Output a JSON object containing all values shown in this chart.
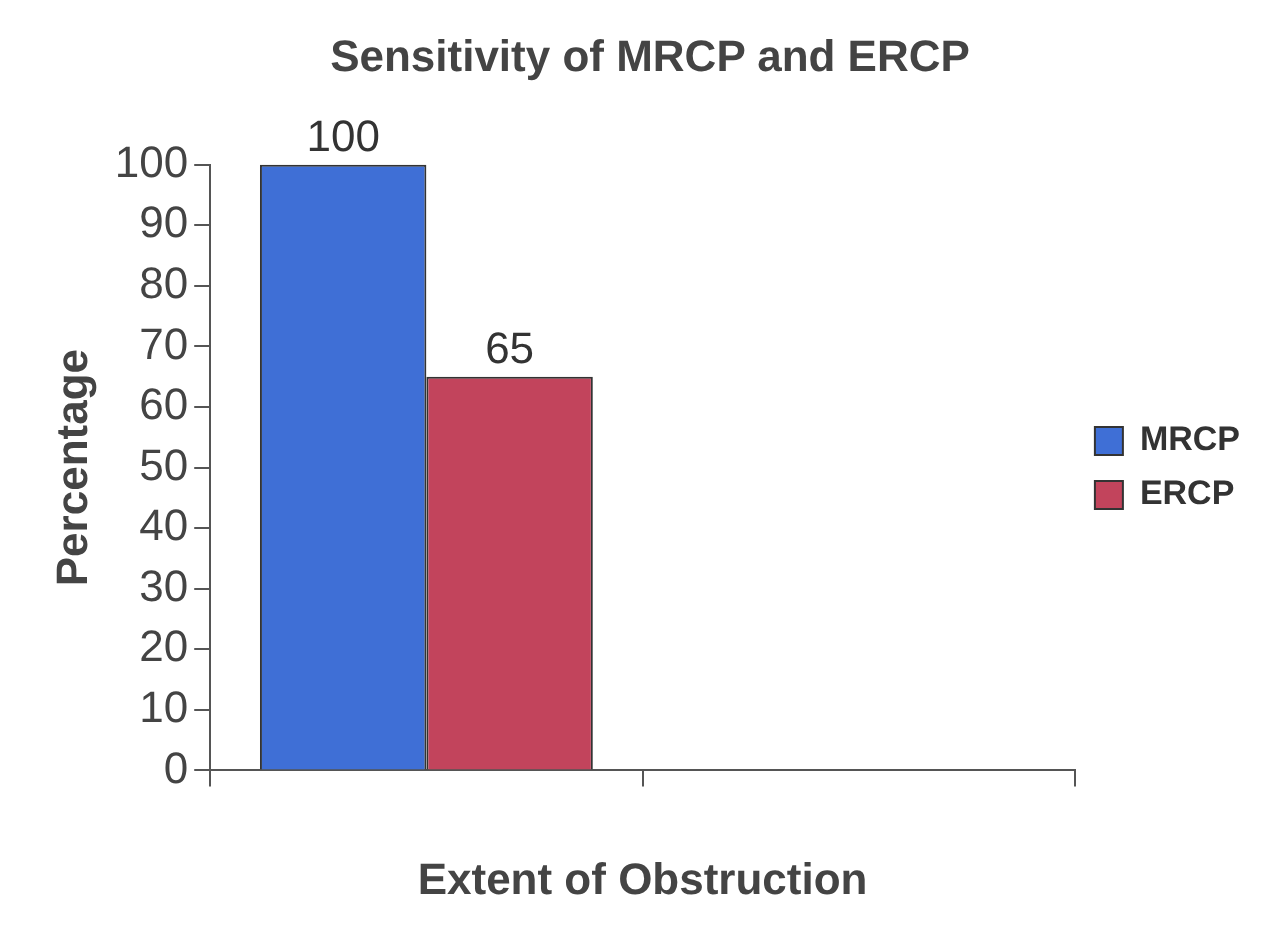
{
  "chart_data": {
    "type": "bar",
    "title": "Sensitivity of MRCP and ERCP",
    "xlabel": "Extent of Obstruction",
    "ylabel": "Percentage",
    "categories": [
      null,
      null
    ],
    "series": [
      {
        "name": "MRCP",
        "color": "#3f6fd6",
        "values": [
          100,
          null
        ]
      },
      {
        "name": "ERCP",
        "color": "#c2445c",
        "values": [
          65,
          null
        ]
      }
    ],
    "ylim": [
      0,
      100
    ],
    "yticks": [
      0,
      10,
      20,
      30,
      40,
      50,
      60,
      70,
      80,
      90,
      100
    ],
    "grid": false,
    "legend": "right",
    "data_labels": true
  }
}
